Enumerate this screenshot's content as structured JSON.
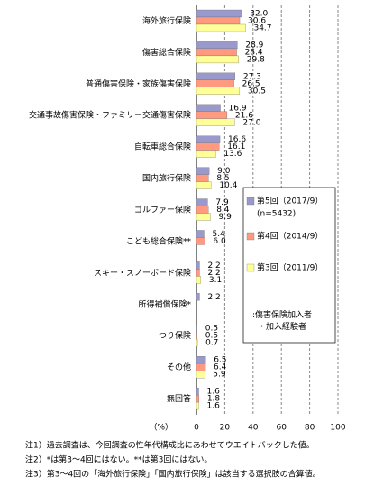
{
  "chart_data": {
    "type": "hbar",
    "categories": [
      "海外旅行保険",
      "傷害総合保険",
      "普通傷害保険・家族傷害保険",
      "交通事故傷害保険・ファミリー交通傷害保険",
      "自転車総合保険",
      "国内旅行保険",
      "ゴルファー保険",
      "こども総合保険**",
      "スキー・スノーボード保険",
      "所得補償保険*",
      "つり保険",
      "その他",
      "無回答"
    ],
    "series": [
      {
        "name": "第5回（2017/9）",
        "color": "#9999cc",
        "values": [
          32.0,
          28.9,
          27.3,
          16.9,
          16.6,
          9.0,
          7.9,
          5.4,
          2.2,
          2.2,
          0.5,
          6.5,
          1.6
        ],
        "value_labels": [
          "32.0",
          "28.9",
          "27.3",
          "16.9",
          "16.6",
          "9.0",
          "7.9",
          "5.4",
          "2.2",
          "2.2",
          "0.5",
          "6.5",
          "1.6"
        ]
      },
      {
        "name": "第4回（2014/9）",
        "color": "#ff9980",
        "values": [
          30.6,
          28.4,
          26.5,
          21.6,
          16.1,
          8.5,
          8.4,
          6.0,
          2.2,
          null,
          0.5,
          6.4,
          1.8
        ],
        "value_labels": [
          "30.6",
          "28.4",
          "26.5",
          "21.6",
          "16.1",
          "8.5",
          "8.4",
          "6.0",
          "2.2",
          null,
          "0.5",
          "6.4",
          "1.8"
        ]
      },
      {
        "name": "第3回（2011/9）",
        "color": "#ffff99",
        "values": [
          34.7,
          29.8,
          30.5,
          27.0,
          13.6,
          10.4,
          9.9,
          null,
          3.1,
          null,
          0.7,
          5.9,
          1.6
        ],
        "value_labels": [
          "34.7",
          "29.8",
          "30.5",
          "27.0",
          "13.6",
          "10.4",
          "9.9",
          null,
          "3.1",
          null,
          "0.7",
          "5.9",
          "1.6"
        ]
      }
    ],
    "legend_note": "(n=5432)",
    "annotation": ":傷害保険加入者・加入経験者",
    "x_label": "（%）",
    "xlim": [
      0,
      100
    ],
    "xticks": [
      0,
      20,
      40,
      60,
      80,
      100
    ],
    "grid": true,
    "notes": [
      "注1）過去調査は、今回調査の性年代構成比にあわせてウエイトバックした値。",
      "注2）*は第3～4回にはない。**は第3回にはない。",
      "注3）第3～4回の「海外旅行保険」「国内旅行保険」は該当する選択肢の合算値。"
    ]
  }
}
